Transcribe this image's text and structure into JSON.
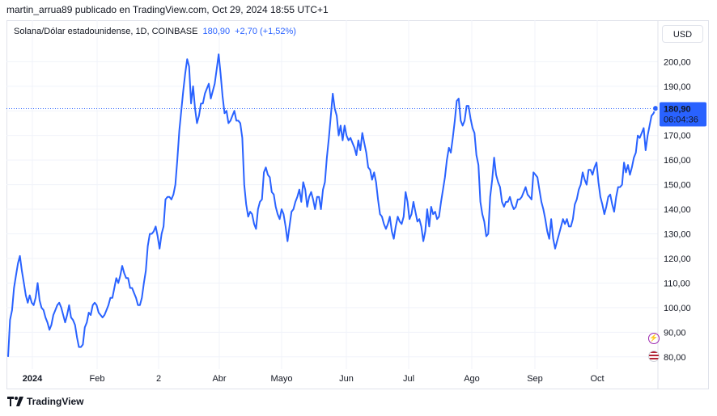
{
  "publisher": "martin_arrua89 publicado en TradingView.com, Oct 29, 2024 18:55 UTC+1",
  "legend": {
    "symbol": "Solana/Dólar estadounidense, 1D, COINBASE",
    "price": "180,90",
    "change": "+2,70 (+1,52%)"
  },
  "currency_button": "USD",
  "logo_text": "TradingView",
  "colors": {
    "line": "#2962ff",
    "grid": "#f0f3fa",
    "label_bg": "#2962ff"
  },
  "chart_data": {
    "type": "line",
    "symbol": "SOLUSD",
    "interval": "1D",
    "ylim": [
      75,
      207
    ],
    "y_ticks": [
      "200,00",
      "190,00",
      "180,00",
      "170,00",
      "160,00",
      "150,00",
      "140,00",
      "130,00",
      "120,00",
      "110,00",
      "100,00",
      "90,00",
      "80,00"
    ],
    "x_tick_labels": [
      "2024",
      "Feb",
      "2",
      "Abr",
      "Mayo",
      "Jun",
      "Jul",
      "Ago",
      "Sep",
      "Oct"
    ],
    "last_price_label": "180,90",
    "countdown_label": "06:04:36",
    "series": [
      {
        "x_start": "2024-01-01",
        "values": [
          80,
          95,
          99,
          108,
          113,
          118,
          121,
          115,
          110,
          105,
          102,
          105,
          102,
          101,
          104,
          110,
          103,
          100,
          99,
          96,
          94,
          91,
          93,
          97,
          99,
          101,
          102,
          100,
          97,
          94,
          97,
          101,
          96,
          95,
          93,
          88,
          84,
          84,
          85,
          92,
          94,
          98,
          97,
          101,
          102,
          101,
          98,
          97,
          96,
          97,
          99,
          101,
          104,
          104,
          108,
          112,
          110,
          113,
          117,
          114,
          112,
          112,
          108,
          108,
          106,
          104,
          101,
          101,
          104,
          110,
          115,
          125,
          130,
          130,
          131,
          133,
          129,
          124,
          130,
          133,
          144,
          145,
          145,
          144,
          146,
          150,
          160,
          172,
          180,
          188,
          195,
          201,
          198,
          183,
          190,
          181,
          175,
          178,
          183,
          183,
          187,
          189,
          191,
          185,
          188,
          191,
          197,
          203,
          195,
          186,
          179,
          180,
          175,
          176,
          178,
          180,
          176,
          176,
          175,
          169,
          150,
          142,
          137,
          139,
          138,
          134,
          132,
          140,
          143,
          144,
          155,
          157,
          154,
          153,
          147,
          146,
          141,
          138,
          136,
          140,
          138,
          133,
          127,
          133,
          139,
          140,
          143,
          145,
          148,
          143,
          151,
          148,
          141,
          145,
          147,
          144,
          140,
          145,
          145,
          140,
          148,
          151,
          161,
          169,
          178,
          187,
          181,
          178,
          170,
          174,
          168,
          174,
          170,
          168,
          169,
          167,
          165,
          162,
          168,
          164,
          171,
          167,
          163,
          157,
          156,
          152,
          155,
          151,
          144,
          138,
          137,
          134,
          132,
          134,
          137,
          131,
          128,
          133,
          137,
          135,
          134,
          137,
          147,
          143,
          136,
          138,
          143,
          139,
          135,
          136,
          133,
          127,
          131,
          140,
          133,
          141,
          138,
          139,
          136,
          137,
          143,
          148,
          153,
          160,
          165,
          163,
          169,
          176,
          184,
          185,
          176,
          174,
          176,
          182,
          182,
          177,
          173,
          171,
          162,
          158,
          143,
          138,
          135,
          129,
          130,
          145,
          152,
          161,
          154,
          151,
          149,
          143,
          141,
          143,
          143,
          145,
          142,
          140,
          141,
          144,
          144,
          145,
          147,
          149,
          146,
          145,
          144,
          155,
          154,
          153,
          148,
          143,
          140,
          136,
          131,
          128,
          136,
          128,
          124,
          127,
          130,
          133,
          136,
          134,
          136,
          133,
          133,
          136,
          142,
          144,
          148,
          150,
          155,
          152,
          150,
          156,
          156,
          154,
          157,
          159,
          151,
          145,
          142,
          138,
          141,
          145,
          146,
          142,
          139,
          145,
          149,
          149,
          150,
          159,
          155,
          158,
          154,
          157,
          161,
          163,
          170,
          169,
          171,
          173,
          164,
          170,
          174,
          178,
          179,
          181
        ]
      }
    ]
  }
}
